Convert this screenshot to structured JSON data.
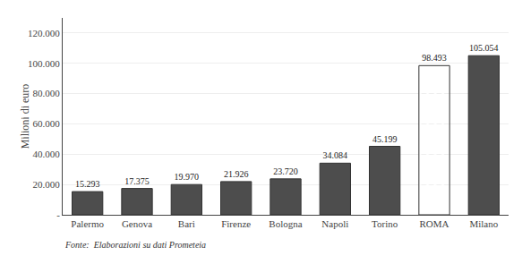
{
  "chart_data": {
    "type": "bar",
    "categories": [
      "Palermo",
      "Genova",
      "Bari",
      "Firenze",
      "Bologna",
      "Napoli",
      "Torino",
      "ROMA",
      "Milano"
    ],
    "values": [
      15293,
      17375,
      19970,
      21926,
      23720,
      34084,
      45199,
      98493,
      105054
    ],
    "value_labels": [
      "15.293",
      "17.375",
      "19.970",
      "21.926",
      "23.720",
      "34.084",
      "45.199",
      "98.493",
      "105.054"
    ],
    "data_labels": true,
    "colors": [
      "#4d4d4d",
      "#4d4d4d",
      "#4d4d4d",
      "#4d4d4d",
      "#4d4d4d",
      "#4d4d4d",
      "#4d4d4d",
      "#ffffff",
      "#4d4d4d"
    ],
    "ylabel": "Milioni di euro",
    "ylim": [
      0,
      130000
    ],
    "yticks": [
      {
        "value": 0,
        "label": "-"
      },
      {
        "value": 20000,
        "label": "20.000"
      },
      {
        "value": 40000,
        "label": "40.000"
      },
      {
        "value": 60000,
        "label": "60.000"
      },
      {
        "value": 80000,
        "label": "80.000"
      },
      {
        "value": 100000,
        "label": "100.000"
      },
      {
        "value": 120000,
        "label": "120.000"
      }
    ],
    "grid": true,
    "annotations": [
      "Fonte:  Elaborazioni su dati Prometeia"
    ]
  }
}
